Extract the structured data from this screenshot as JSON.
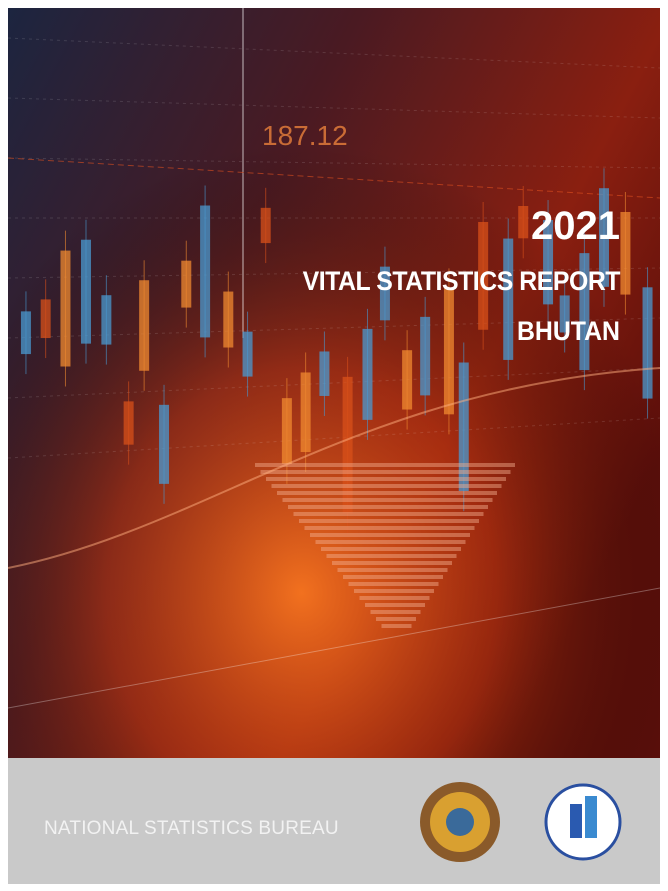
{
  "cover": {
    "year": "2021",
    "title": "VITAL STATISTICS REPORT",
    "country": "BHUTAN",
    "background_figure": "187.12",
    "publisher": "NATIONAL STATISTICS BUREAU"
  }
}
